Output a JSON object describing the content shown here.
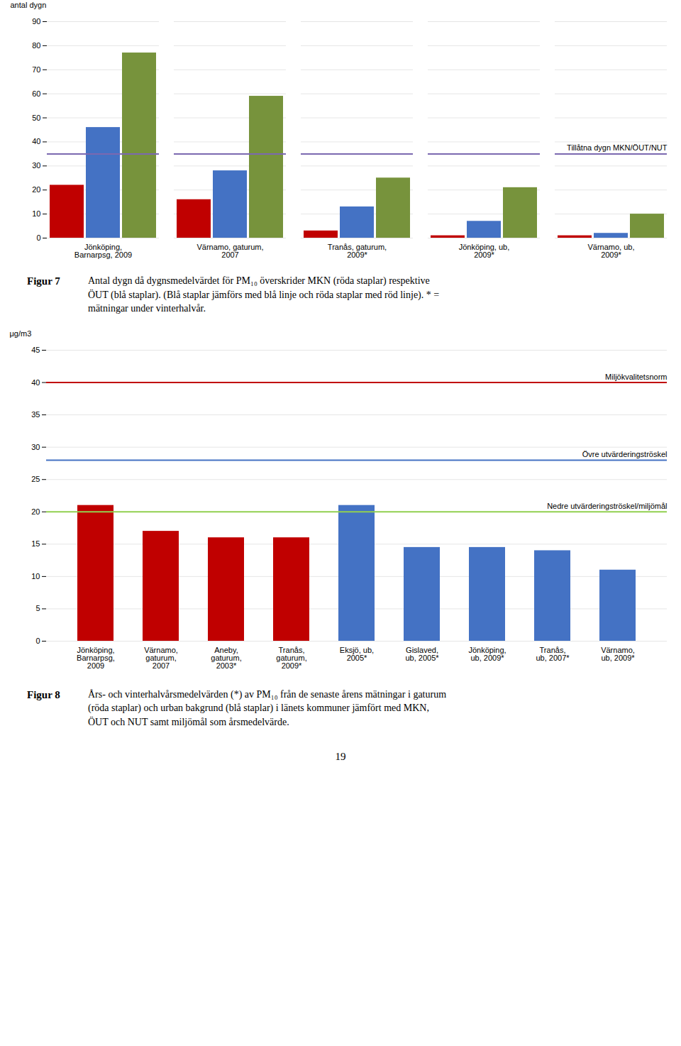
{
  "chart_data": [
    {
      "type": "bar",
      "categories": [
        "Jönköping,\nBarnarpsg, 2009",
        "Värnamo, gaturum,\n2007",
        "Tranås, gaturum,\n2009*",
        "Jönköping, ub,\n2009*",
        "Värnamo, ub,\n2009*"
      ],
      "series": [
        {
          "color": "#C00000",
          "values": [
            22,
            16,
            3,
            1,
            1
          ]
        },
        {
          "color": "#4472C4",
          "values": [
            46,
            28,
            13,
            7,
            2
          ]
        },
        {
          "color": "#77933C",
          "values": [
            77,
            59,
            25,
            21,
            10
          ]
        }
      ],
      "ylabel": "antal dygn",
      "ylim": [
        0,
        90
      ],
      "yticks": [
        0,
        10,
        20,
        30,
        40,
        50,
        60,
        70,
        80,
        90
      ],
      "grid": true,
      "hlines": [
        {
          "value": 35,
          "label": "Tillåtna dygn MKN/ÖUT/NUT",
          "color": "#7B68B0"
        }
      ],
      "caption_label": "Figur 7",
      "caption": "Antal dygn då dygnsmedelvärdet för PM₁₀ överskrider MKN (röda staplar) respektive\nÖUT (blå staplar). (Blå staplar jämförs med blå linje och röda staplar med röd linje). * =\nmätningar under vinterhalvår."
    },
    {
      "type": "bar",
      "categories": [
        "Jönköping,\nBarnarpsg,\n2009",
        "Värnamo,\ngaturum,\n2007",
        "Aneby,\ngaturum,\n2003*",
        "Tranås,\ngaturum,\n2009*",
        "Eksjö, ub,\n2005*",
        "Gislaved,\nub, 2005*",
        "Jönköping,\nub, 2009*",
        "Tranås,\nub, 2007*",
        "Värnamo,\nub, 2009*"
      ],
      "values": [
        21,
        17,
        16,
        16,
        21,
        14.5,
        14.5,
        14,
        11
      ],
      "colors": [
        "#C00000",
        "#C00000",
        "#C00000",
        "#C00000",
        "#4472C4",
        "#4472C4",
        "#4472C4",
        "#4472C4",
        "#4472C4"
      ],
      "ylabel": "μg/m3",
      "ylim": [
        0,
        45
      ],
      "yticks": [
        0,
        5,
        10,
        15,
        20,
        25,
        30,
        35,
        40,
        45
      ],
      "grid": true,
      "hlines": [
        {
          "value": 40,
          "label": "Miljökvalitetsnorm",
          "color": "#C00000"
        },
        {
          "value": 28,
          "label": "Övre utvärderingströskel",
          "color": "#4472C4"
        },
        {
          "value": 20,
          "label": "Nedre utvärderingströskel/miljömål",
          "color": "#92D050"
        }
      ],
      "caption_label": "Figur 8",
      "caption": "Års- och vinterhalvårsmedelvärden (*) av PM₁₀ från de senaste årens mätningar i gaturum\n(röda staplar) och urban bakgrund (blå staplar) i länets kommuner jämfört med MKN,\nÖUT och NUT samt miljömål som årsmedelvärde."
    }
  ],
  "page_number": "19"
}
